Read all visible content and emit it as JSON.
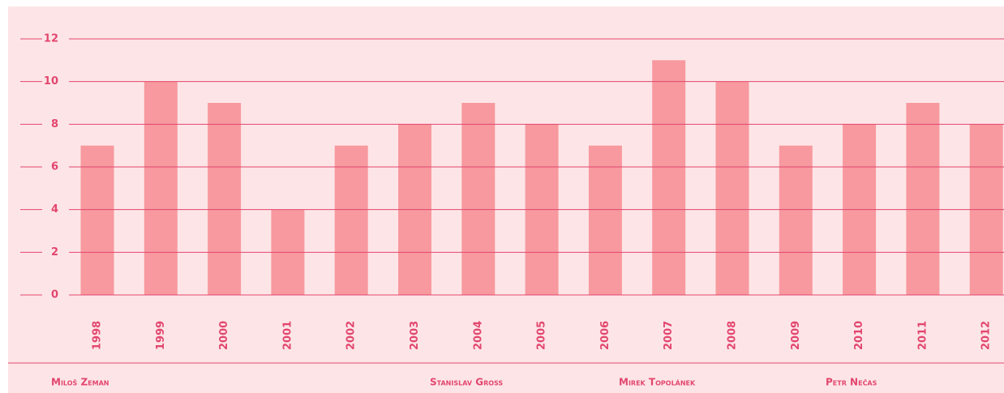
{
  "chart_data": {
    "type": "bar",
    "categories": [
      "1998",
      "1999",
      "2000",
      "2001",
      "2002",
      "2003",
      "2004",
      "2005",
      "2006",
      "2007",
      "2008",
      "2009",
      "2010",
      "2011",
      "2012"
    ],
    "values": [
      7,
      10,
      9,
      4,
      7,
      8,
      9,
      8,
      7,
      11,
      10,
      7,
      8,
      9,
      8
    ],
    "color": "#f7999f",
    "ylim": [
      0,
      12
    ],
    "yticks": [
      0,
      2,
      4,
      6,
      8,
      10,
      12
    ],
    "grid": true,
    "annotations": [
      "Miloš Zeman",
      "Stanislav Gross",
      "Mirek Topolánek",
      "Petr Nečas"
    ]
  }
}
